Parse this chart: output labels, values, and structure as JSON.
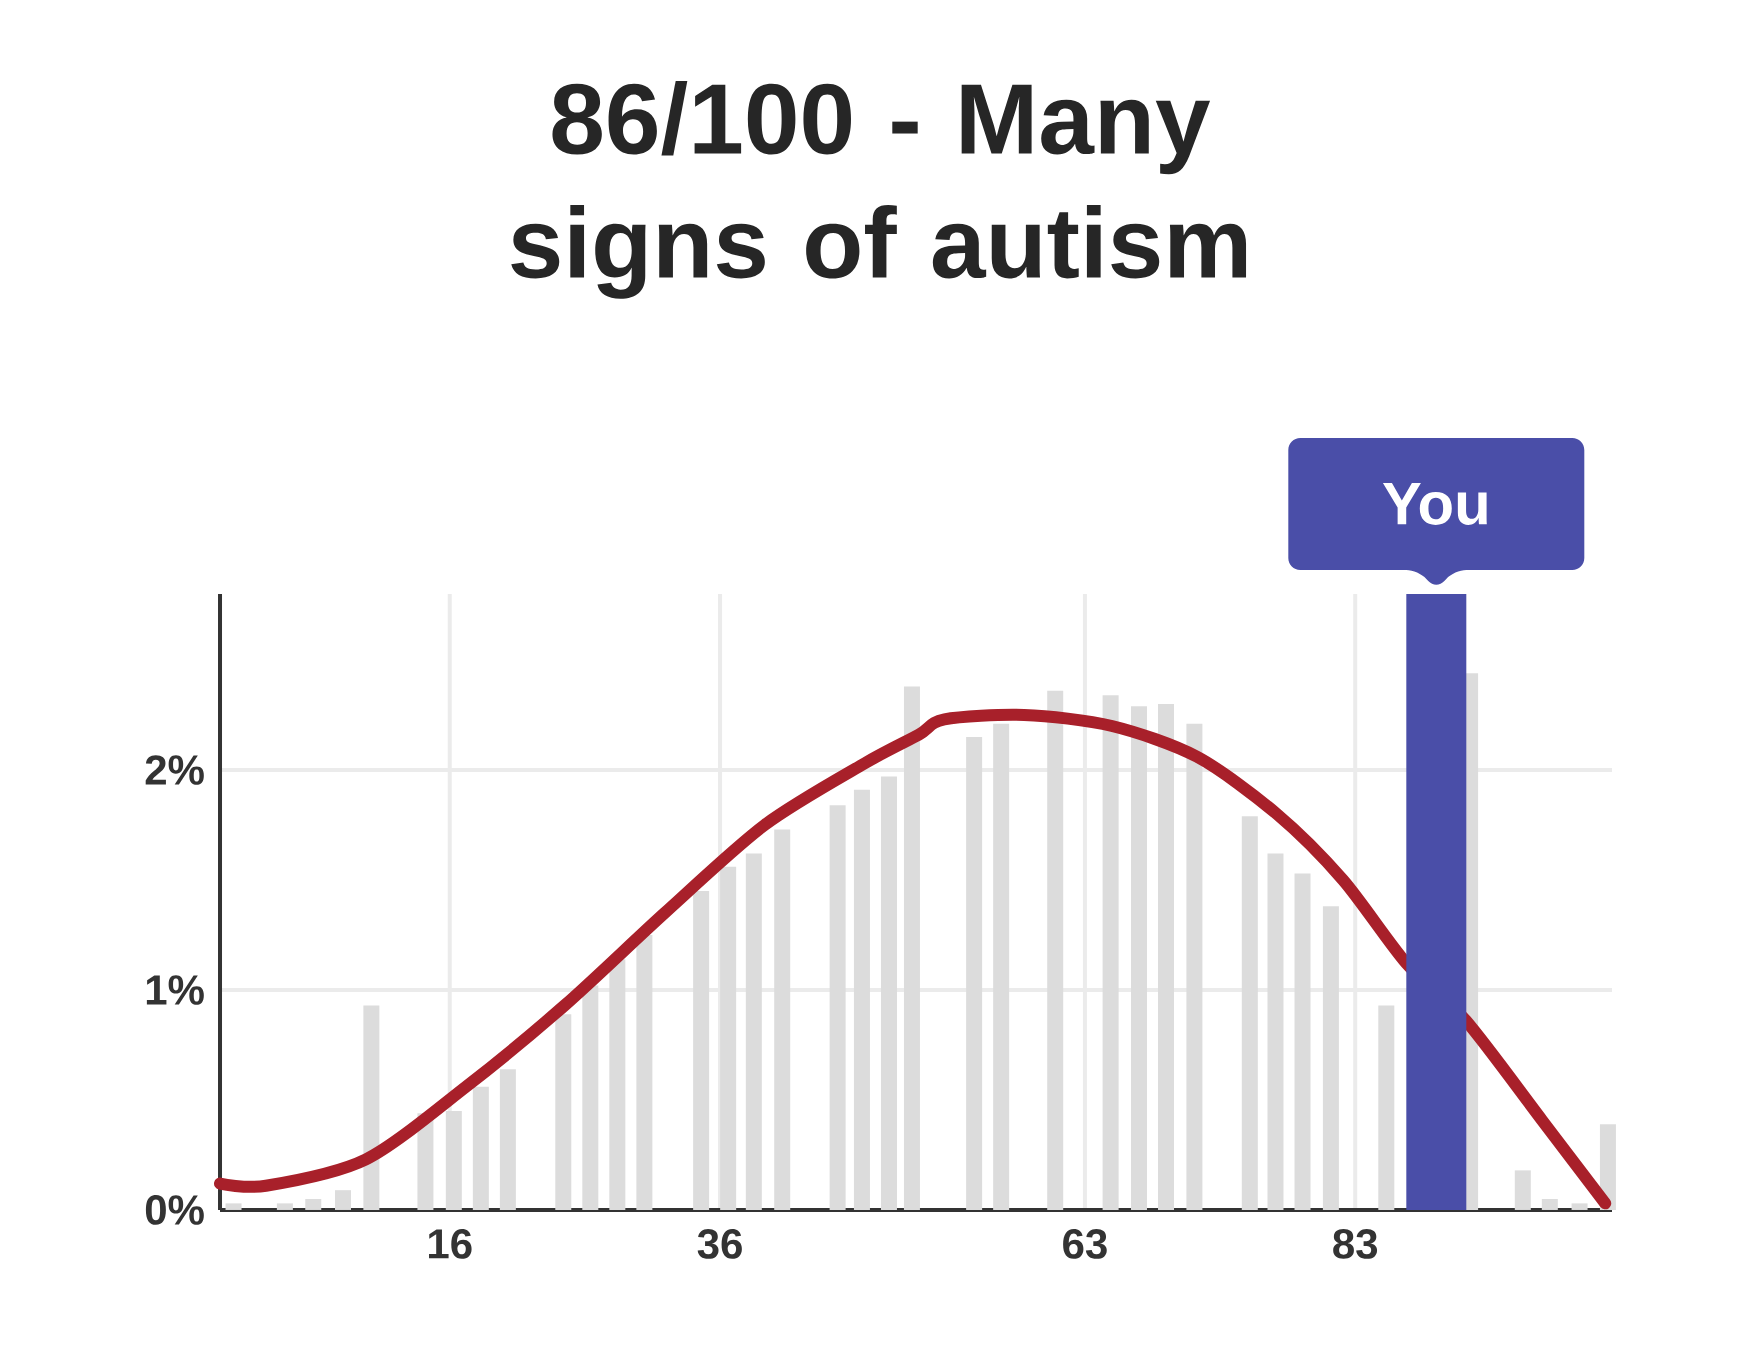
{
  "chart_data": {
    "type": "bar",
    "title": "86/100 - Many signs of autism",
    "series": [
      {
        "color": "#dcdcdc",
        "x": [
          0,
          3.8,
          5.9,
          8.1,
          10.2,
          14.2,
          16.3,
          18.3,
          20.3,
          24.4,
          26.4,
          28.4,
          30.4,
          34.6,
          36.6,
          38.5,
          40.6,
          44.7,
          46.5,
          48.5,
          50.2,
          54.8,
          56.8,
          60.8,
          64.9,
          67.0,
          69.0,
          71.1,
          75.2,
          77.1,
          79.1,
          81.2,
          85.3,
          91.5,
          95.4,
          97.4,
          99.6,
          101.7
        ],
        "values": [
          0.03,
          0.03,
          0.05,
          0.09,
          0.93,
          0.44,
          0.45,
          0.56,
          0.64,
          0.89,
          1.02,
          1.14,
          1.25,
          1.45,
          1.56,
          1.62,
          1.73,
          1.84,
          1.91,
          1.97,
          2.38,
          2.15,
          2.21,
          2.36,
          2.34,
          2.29,
          2.3,
          2.21,
          1.79,
          1.62,
          1.53,
          1.38,
          0.93,
          2.44,
          0.18,
          0.05,
          0.03,
          0.39
        ]
      },
      {
        "type": "line",
        "color": "#a8202a",
        "x": [
          -1,
          2.4,
          9.8,
          17.2,
          24.5,
          31.9,
          39.3,
          46.7,
          50.7,
          52.6,
          58.5,
          65,
          71.3,
          77.2,
          82.1,
          86.8,
          91.2,
          96.8,
          101.5
        ],
        "values": [
          0.12,
          0.11,
          0.23,
          0.56,
          0.93,
          1.35,
          1.75,
          2.03,
          2.16,
          2.23,
          2.25,
          2.2,
          2.06,
          1.8,
          1.5,
          1.12,
          0.86,
          0.41,
          0.03
        ]
      }
    ],
    "xlim": [
      -1,
      102
    ],
    "ylim": [
      0,
      2.8
    ],
    "xticks": [
      16,
      36,
      63,
      83
    ],
    "yticks": [
      {
        "value": 0,
        "label": "0%"
      },
      {
        "value": 1,
        "label": "1%"
      },
      {
        "value": 2,
        "label": "2%"
      }
    ],
    "grid": true,
    "ref_lines": [
      {
        "axis": "x",
        "value": 89,
        "label": "You",
        "color": "#4a4ea8"
      }
    ]
  }
}
